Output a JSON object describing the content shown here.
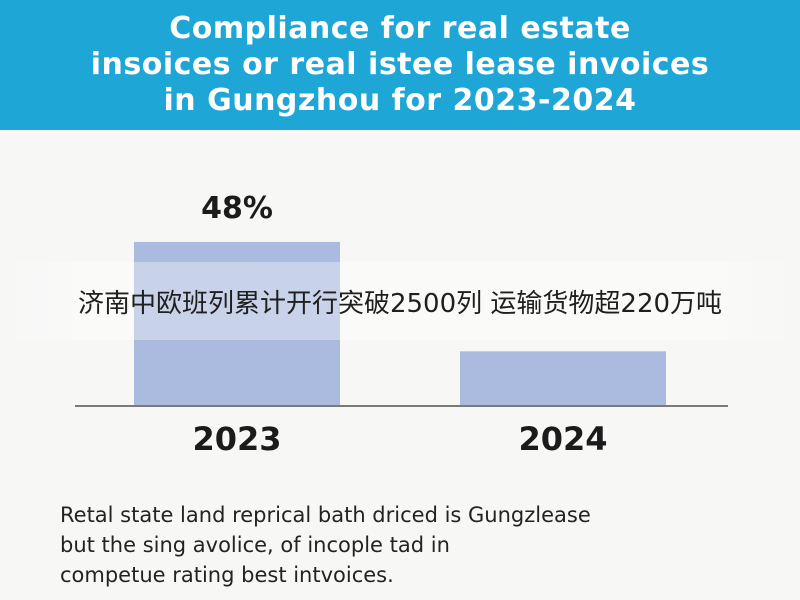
{
  "header": {
    "title_lines": [
      "Compliance for real estate",
      "insoices or real istee lease invoices",
      "in Gungzhou for 2023-2024"
    ]
  },
  "overlay": {
    "text": "济南中欧班列累计开行突破2500列 运输货物超220万吨"
  },
  "caption": {
    "lines": [
      "Retal state land reprical bath driced is Gungzlease",
      "but the sing avolice, of incople tad in",
      "competue rating best intvoices."
    ]
  },
  "colors": {
    "header_bg": "#1ea6d6",
    "bar": "#aabbdf",
    "axis": "#7a7a7a"
  },
  "chart_data": {
    "type": "bar",
    "title": "Compliance for real estate insoices or real istee lease invoices in Gungzhou for 2023-2024",
    "categories": [
      "2023",
      "2024"
    ],
    "values": [
      48,
      16
    ],
    "data_labels": [
      "48%",
      ""
    ],
    "ylim": [
      0,
      55
    ],
    "grid": false
  }
}
